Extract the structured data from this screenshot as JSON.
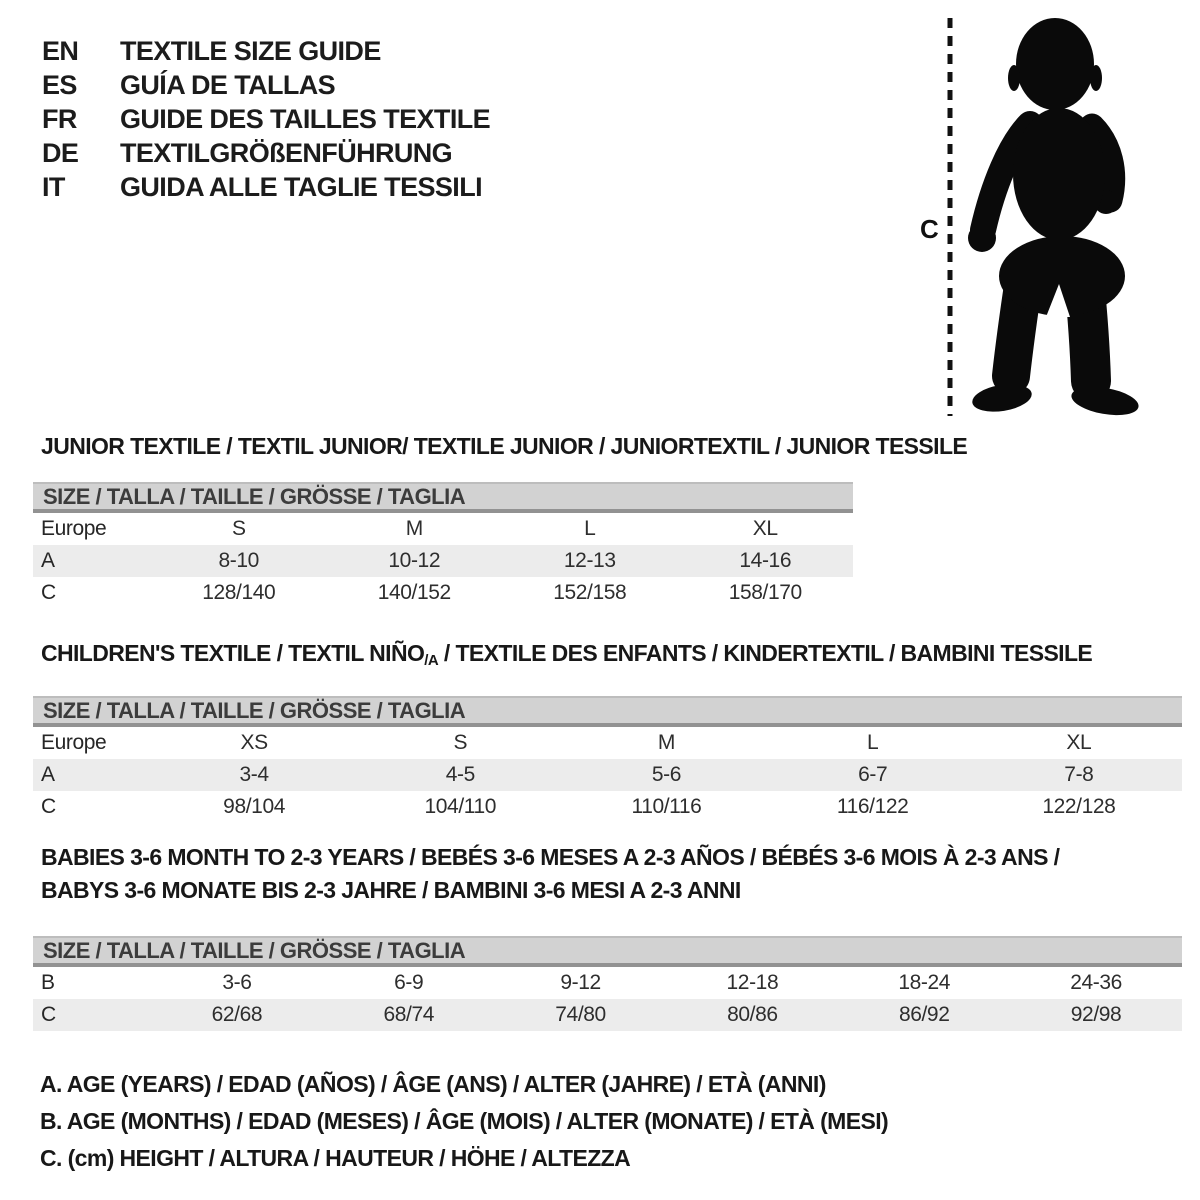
{
  "header": {
    "languages": [
      {
        "code": "EN",
        "label": "TEXTILE SIZE GUIDE"
      },
      {
        "code": "ES",
        "label": "GUÍA DE TALLAS"
      },
      {
        "code": "FR",
        "label": "GUIDE DES TAILLES TEXTILE"
      },
      {
        "code": "DE",
        "label": "TEXTILGRÖßENFÜHRUNG"
      },
      {
        "code": "IT",
        "label": "GUIDA ALLE TAGLIE TESSILI"
      }
    ]
  },
  "figure": {
    "height_label": "C"
  },
  "sections": {
    "junior": {
      "title": "JUNIOR TEXTILE / TEXTIL JUNIOR/ TEXTILE JUNIOR / JUNIORTEXTIL / JUNIOR TESSILE",
      "size_header": "SIZE / TALLA / TAILLE / GRÖSSE / TAGLIA",
      "rows": [
        {
          "label": "Europe",
          "cells": [
            "S",
            "M",
            "L",
            "XL"
          ],
          "shaded": false
        },
        {
          "label": "A",
          "cells": [
            "8-10",
            "10-12",
            "12-13",
            "14-16"
          ],
          "shaded": true
        },
        {
          "label": "C",
          "cells": [
            "128/140",
            "140/152",
            "152/158",
            "158/170"
          ],
          "shaded": false
        }
      ]
    },
    "children": {
      "title_before": "CHILDREN'S TEXTILE / TEXTIL NIÑO",
      "title_sub": "/A",
      "title_after": " / TEXTILE DES ENFANTS / KINDERTEXTIL / BAMBINI TESSILE",
      "size_header": "SIZE / TALLA / TAILLE / GRÖSSE / TAGLIA",
      "rows": [
        {
          "label": "Europe",
          "cells": [
            "XS",
            "S",
            "M",
            "L",
            "XL"
          ],
          "shaded": false
        },
        {
          "label": "A",
          "cells": [
            "3-4",
            "4-5",
            "5-6",
            "6-7",
            "7-8"
          ],
          "shaded": true
        },
        {
          "label": "C",
          "cells": [
            "98/104",
            "104/110",
            "110/116",
            "116/122",
            "122/128"
          ],
          "shaded": false
        }
      ]
    },
    "babies": {
      "title_line1": "BABIES 3-6 MONTH TO 2-3 YEARS / BEBÉS 3-6 MESES A 2-3 AÑOS / BÉBÉS 3-6 MOIS À 2-3 ANS /",
      "title_line2": "BABYS 3-6 MONATE BIS 2-3 JAHRE / BAMBINI 3-6 MESI A 2-3 ANNI",
      "size_header": "SIZE / TALLA / TAILLE / GRÖSSE / TAGLIA",
      "rows": [
        {
          "label": "B",
          "cells": [
            "3-6",
            "6-9",
            "9-12",
            "12-18",
            "18-24",
            "24-36"
          ],
          "shaded": false
        },
        {
          "label": "C",
          "cells": [
            "62/68",
            "68/74",
            "74/80",
            "80/86",
            "86/92",
            "92/98"
          ],
          "shaded": true
        }
      ]
    }
  },
  "legend": [
    "A. AGE (YEARS) / EDAD (AÑOS) / ÂGE (ANS) / ALTER (JAHRE) / ETÀ (ANNI)",
    "B. AGE (MONTHS) / EDAD (MESES) / ÂGE (MOIS) / ALTER (MONATE) / ETÀ (MESI)",
    "C. (cm) HEIGHT / ALTURA / HAUTEUR / HÖHE / ALTEZZA"
  ],
  "colors": {
    "table_header_bg": "#d2d2d2",
    "table_header_border": "#929292",
    "row_shaded_bg": "#ececec",
    "text": "#1d1d1d",
    "silhouette": "#0a0a0a"
  }
}
